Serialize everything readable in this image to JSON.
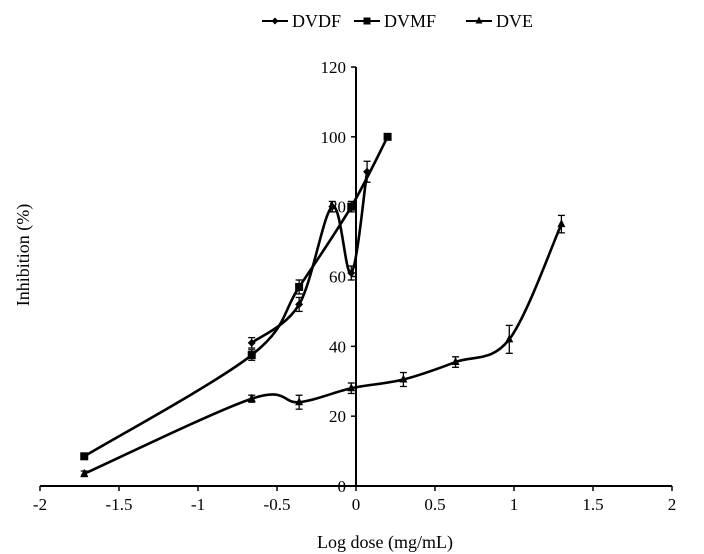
{
  "chart_data": {
    "type": "line",
    "title": "",
    "xlabel": "Log dose (mg/mL)",
    "ylabel": "Inhibition (%)",
    "xlim": [
      -2,
      2
    ],
    "ylim": [
      0,
      120
    ],
    "x_ticks": [
      "-2",
      "-1.5",
      "-1",
      "-0.5",
      "0",
      "0.5",
      "1",
      "1.5",
      "2"
    ],
    "y_ticks": [
      "0",
      "20",
      "40",
      "60",
      "80",
      "100",
      "120"
    ],
    "legend_position": "top",
    "grid": false,
    "series": [
      {
        "name": "DVDF",
        "marker": "diamond",
        "color": "#000000",
        "points": [
          {
            "x": -0.66,
            "y": 41,
            "err": 1.5
          },
          {
            "x": -0.36,
            "y": 52,
            "err": 2
          },
          {
            "x": -0.15,
            "y": 80,
            "err": 1.5
          },
          {
            "x": -0.03,
            "y": 61,
            "err": 2
          },
          {
            "x": 0.07,
            "y": 90,
            "err": 3
          }
        ]
      },
      {
        "name": "DVMF",
        "marker": "square",
        "color": "#000000",
        "points": [
          {
            "x": -1.72,
            "y": 8.5,
            "err": 0.8
          },
          {
            "x": -0.66,
            "y": 37.5,
            "err": 1.5
          },
          {
            "x": -0.36,
            "y": 57,
            "err": 2
          },
          {
            "x": -0.03,
            "y": 80,
            "err": 1.5
          },
          {
            "x": 0.2,
            "y": 100,
            "err": 0
          }
        ]
      },
      {
        "name": "DVE",
        "marker": "triangle",
        "color": "#000000",
        "points": [
          {
            "x": -1.72,
            "y": 3.5,
            "err": 0.8
          },
          {
            "x": -0.66,
            "y": 25,
            "err": 1
          },
          {
            "x": -0.36,
            "y": 24,
            "err": 2
          },
          {
            "x": -0.03,
            "y": 28,
            "err": 1.5
          },
          {
            "x": 0.3,
            "y": 30.5,
            "err": 2
          },
          {
            "x": 0.63,
            "y": 35.5,
            "err": 1.5
          },
          {
            "x": 0.97,
            "y": 42,
            "err": 4
          },
          {
            "x": 1.3,
            "y": 75,
            "err": 2.5
          }
        ]
      }
    ]
  }
}
